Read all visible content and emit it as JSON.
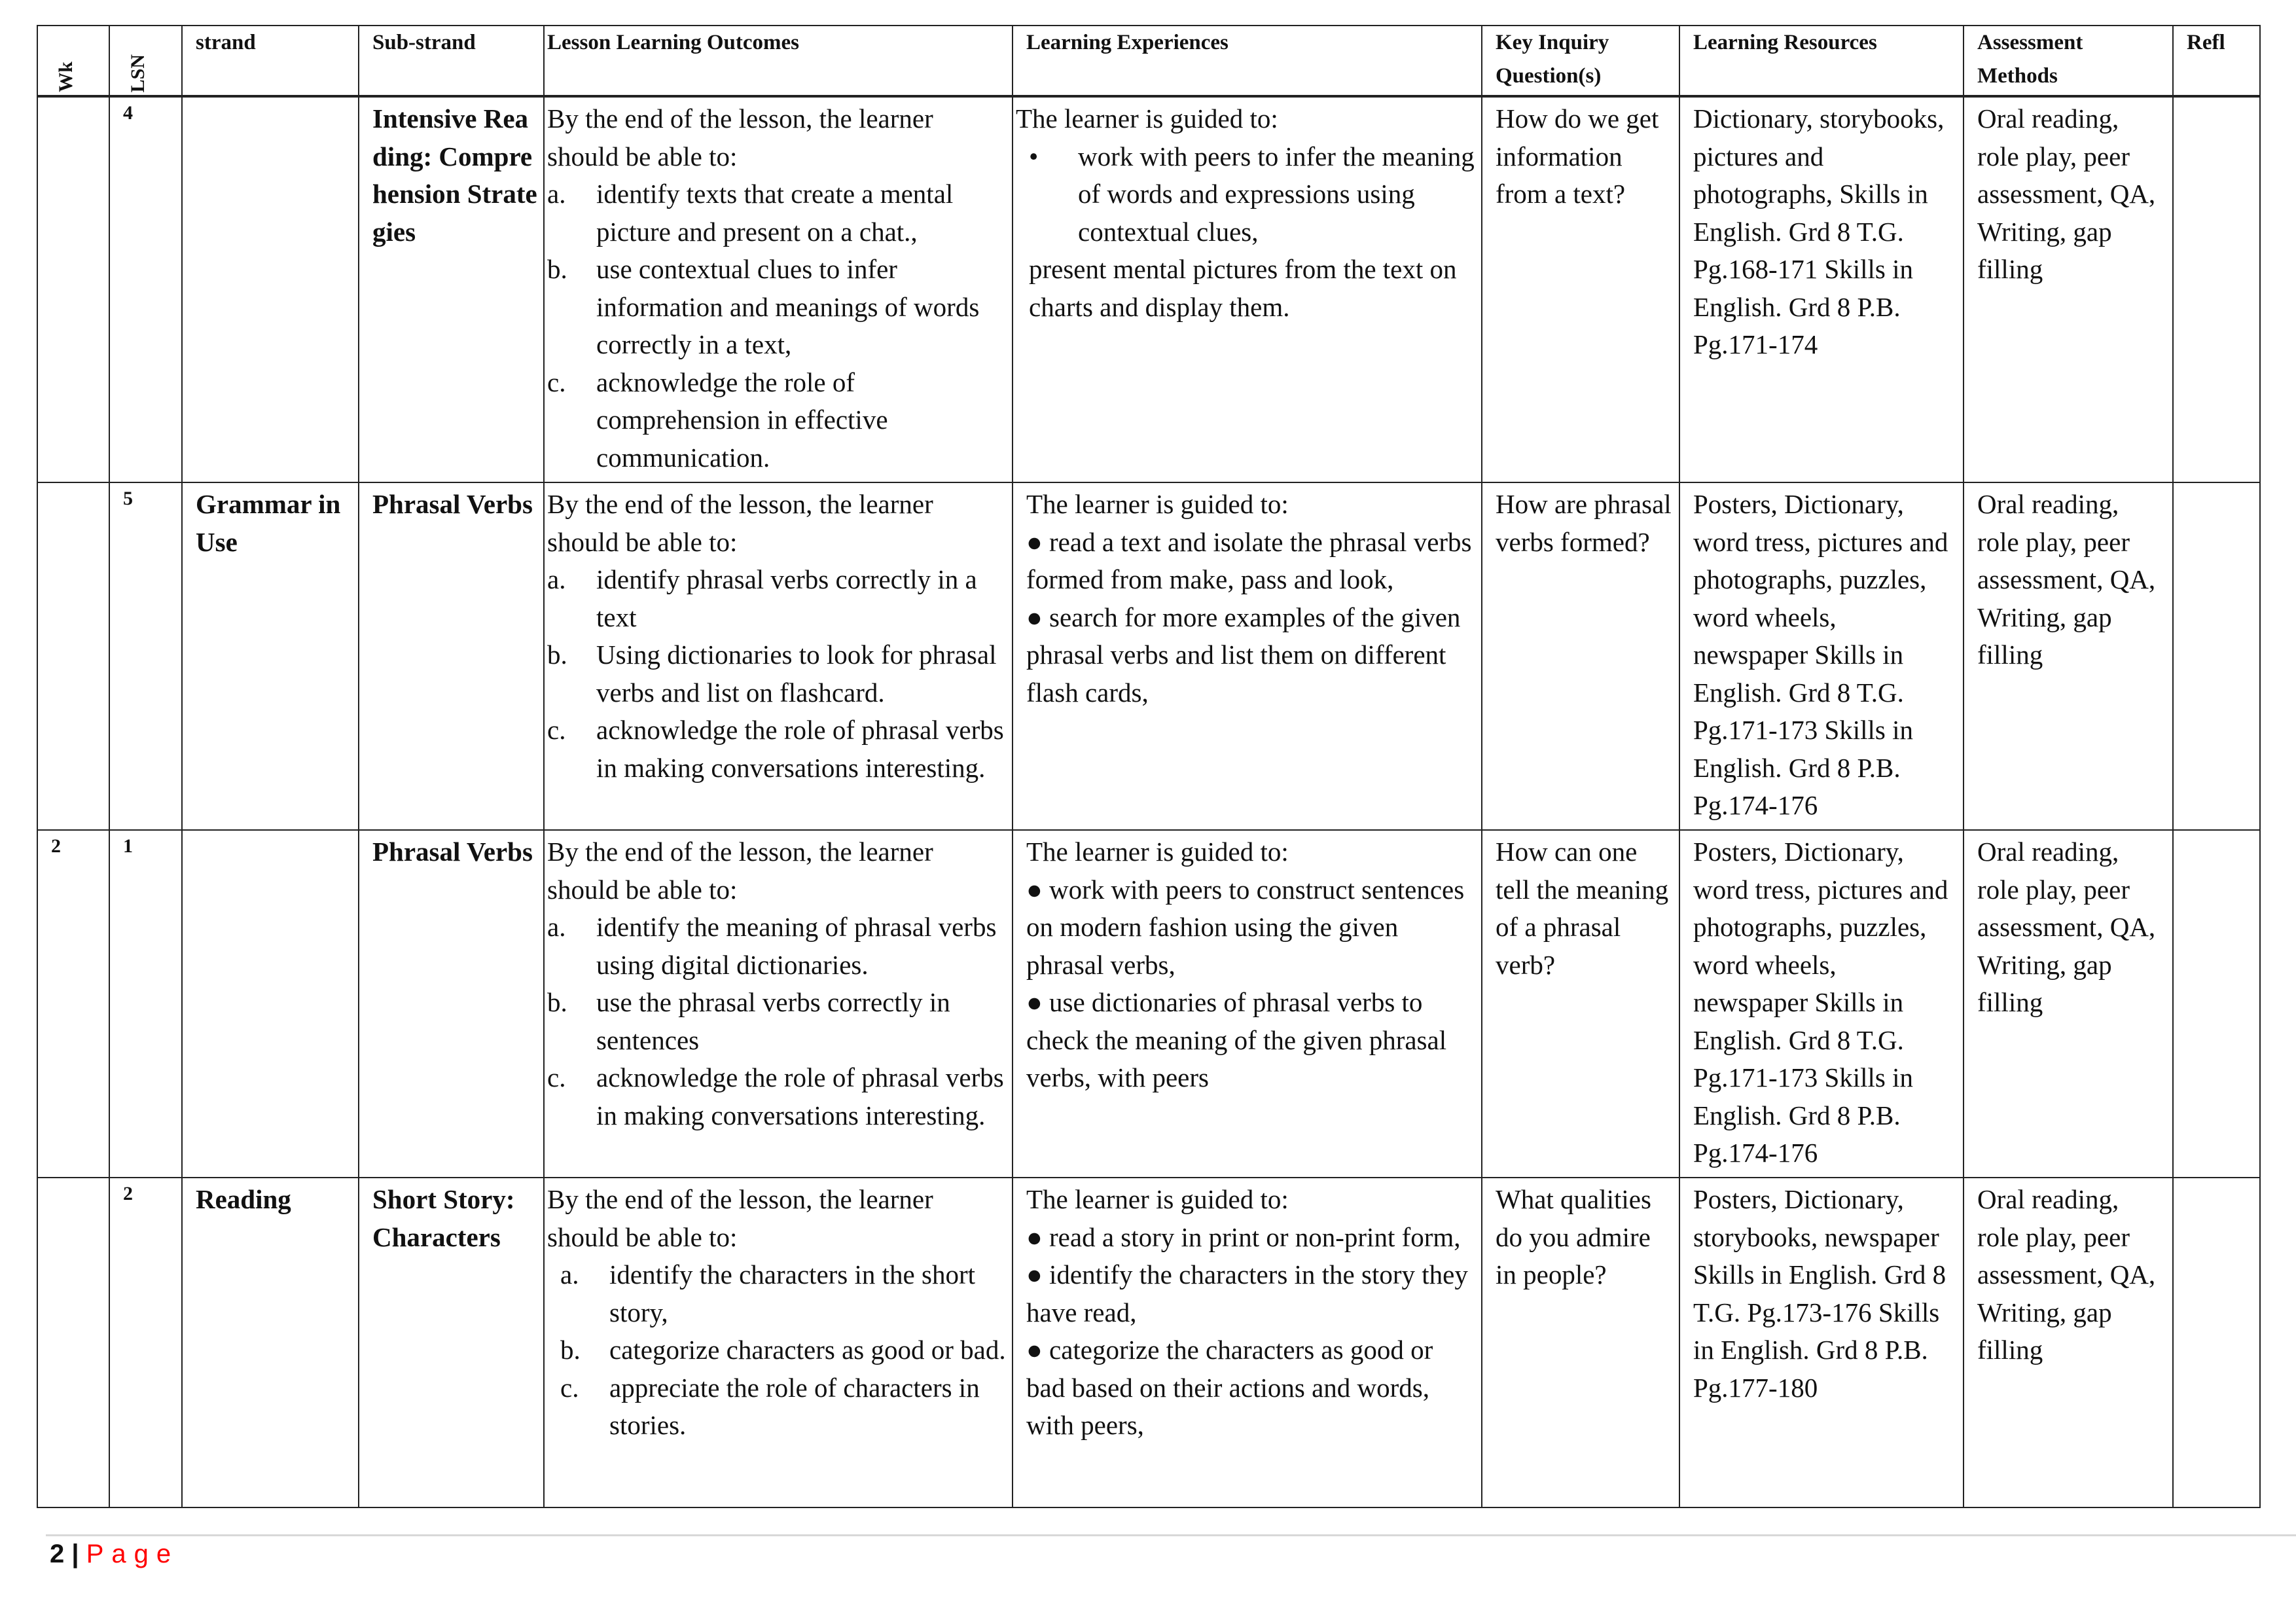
{
  "headers": {
    "wk": "Wk",
    "lsn": "LSN",
    "strand": "strand",
    "substrand": "Sub-strand",
    "outcomes": "Lesson Learning Outcomes",
    "experiences": "Learning Experiences",
    "inquiry": "Key Inquiry Question(s)",
    "resources": "Learning Resources",
    "assessment": "Assessment Methods",
    "reflection": "Refl"
  },
  "rows": [
    {
      "wk": "",
      "lsn": "4",
      "strand": "",
      "substrand": "Intensive Reading: Comprehension Strategies",
      "outcomes_intro": "By the end of the lesson, the learner should be able to:",
      "outcomes": [
        {
          "m": "a.",
          "t": "identify texts that create a mental picture and present on a chat.,"
        },
        {
          "m": "b.",
          "t": "use contextual clues to infer information and meanings of words correctly in a text,"
        },
        {
          "m": "c.",
          "t": "acknowledge the role of comprehension in effective communication."
        }
      ],
      "exp_intro": "The learner is guided to:",
      "experiences": [
        "work with peers to infer the meaning of words and expressions using contextual clues,"
      ],
      "exp_tail": "present mental pictures from the text on charts and display them.",
      "inquiry": "How do we get information from a text?",
      "resources": "Dictionary, storybooks, pictures and photographs, Skills in English. Grd 8 T.G. Pg.168-171 Skills in English. Grd 8 P.B. Pg.171-174",
      "assessment": "Oral reading, role play, peer assessment, QA, Writing, gap filling"
    },
    {
      "wk": "",
      "lsn": "5",
      "strand": "Grammar in Use",
      "substrand": "Phrasal Verbs",
      "outcomes_intro": "By the end of the lesson, the learner should be able to:",
      "outcomes": [
        {
          "m": "a.",
          "t": "identify phrasal verbs correctly in a text"
        },
        {
          "m": "b.",
          "t": "Using dictionaries to look for phrasal verbs and list on flashcard."
        },
        {
          "m": "c.",
          "t": "acknowledge the role of phrasal verbs in making conversations interesting."
        }
      ],
      "exp_intro": "The learner is guided to:",
      "experiences": [
        "read a text and isolate the phrasal verbs formed from make, pass and look,",
        "search for more examples of the given phrasal verbs and list them on different flash cards,"
      ],
      "exp_tail": "",
      "inquiry": "How are phrasal verbs formed?",
      "resources": "Posters, Dictionary, word tress, pictures and photographs, puzzles, word wheels, newspaper Skills in English. Grd 8 T.G. Pg.171-173 Skills in English. Grd 8 P.B. Pg.174-176",
      "assessment": "Oral reading, role play, peer assessment, QA, Writing, gap filling"
    },
    {
      "wk": "2",
      "lsn": "1",
      "strand": "",
      "substrand": "Phrasal Verbs",
      "outcomes_intro": "By the end of the lesson, the learner should be able to:",
      "outcomes": [
        {
          "m": "a.",
          "t": "identify the meaning of phrasal verbs using digital dictionaries."
        },
        {
          "m": "b.",
          "t": "use the phrasal verbs correctly in sentences"
        },
        {
          "m": "c.",
          "t": "acknowledge the role of phrasal verbs in making conversations interesting."
        }
      ],
      "exp_intro": "The learner is guided to:",
      "experiences": [
        "work with peers to construct sentences on modern fashion using the given phrasal verbs,",
        "use dictionaries of phrasal verbs to check the meaning of the given phrasal verbs, with peers"
      ],
      "exp_tail": "",
      "inquiry": "How can one tell the meaning of a phrasal verb?",
      "resources": "Posters, Dictionary, word tress, pictures and photographs, puzzles, word wheels, newspaper Skills in English. Grd 8 T.G. Pg.171-173 Skills in English. Grd 8 P.B. Pg.174-176",
      "assessment": "Oral reading, role play, peer assessment, QA, Writing, gap filling"
    },
    {
      "wk": "",
      "lsn": "2",
      "strand": "Reading",
      "substrand": "Short Story: Characters",
      "outcomes_intro": "By the end of the lesson, the learner should be able to:",
      "outcomes": [
        {
          "m": "a.",
          "t": "identify the characters in the short story,"
        },
        {
          "m": "b.",
          "t": "categorize characters as good or bad."
        },
        {
          "m": "c.",
          "t": "appreciate the role of characters in stories."
        }
      ],
      "exp_intro": "The learner is guided to:",
      "experiences": [
        "read a story in print or non-print form,",
        "identify the characters in the story they have read,",
        "categorize the characters as good or bad based on their actions and words, with peers,"
      ],
      "exp_tail": "",
      "inquiry": "What qualities do you admire in people?",
      "resources": "Posters, Dictionary, storybooks, newspaper Skills in English. Grd 8 T.G. Pg.173-176 Skills in English. Grd 8 P.B. Pg.177-180",
      "assessment": "Oral reading, role play, peer assessment, QA, Writing, gap filling"
    }
  ],
  "footer": {
    "page_number": "2",
    "separator": "|",
    "page_label": "Page"
  },
  "colors": {
    "footer_label": "#ff0000",
    "border": "#222222"
  }
}
